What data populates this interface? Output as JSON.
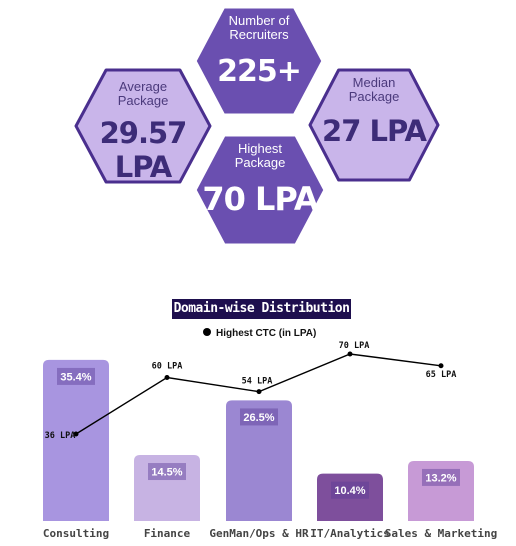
{
  "stats": {
    "recruiters": {
      "label_line1": "Number of",
      "label_line2": "Recruiters",
      "value": "225+"
    },
    "average": {
      "label_line1": "Average",
      "label_line2": "Package",
      "value": "29.57 LPA"
    },
    "median": {
      "label_line1": "Median",
      "label_line2": "Package",
      "value": "27 LPA"
    },
    "highest": {
      "label_line1": "Highest",
      "label_line2": "Package",
      "value": "70 LPA"
    }
  },
  "colors": {
    "hex_dark": "#6a4fb0",
    "hex_dark_border": "#ffffff",
    "hex_light": "#c9b5ea",
    "hex_light_border": "#4a2f8e",
    "title_bg": "#1e0f4e"
  },
  "chart_data": {
    "type": "bar",
    "title": "Domain-wise Distribution",
    "categories": [
      "Consulting",
      "Finance",
      "GenMan/Ops & HR",
      "IT/Analytics",
      "Sales & Marketing"
    ],
    "series": [
      {
        "values": [
          35.4,
          14.5,
          26.5,
          10.4,
          13.2
        ],
        "labels": [
          "35.4%",
          "14.5%",
          "26.5%",
          "10.4%",
          "13.2%"
        ],
        "colors": [
          "#a895e0",
          "#c7b3e3",
          "#9b87d2",
          "#7e4f9c",
          "#c79ad6"
        ]
      },
      {
        "name": "Highest CTC (in LPA)",
        "type": "line",
        "values": [
          36,
          60,
          54,
          70,
          65
        ],
        "labels": [
          "36 LPA",
          "60 LPA",
          "54 LPA",
          "70 LPA",
          "65 LPA"
        ]
      }
    ],
    "legend": "Highest CTC (in LPA)",
    "legend_position": "top",
    "grid": false
  }
}
